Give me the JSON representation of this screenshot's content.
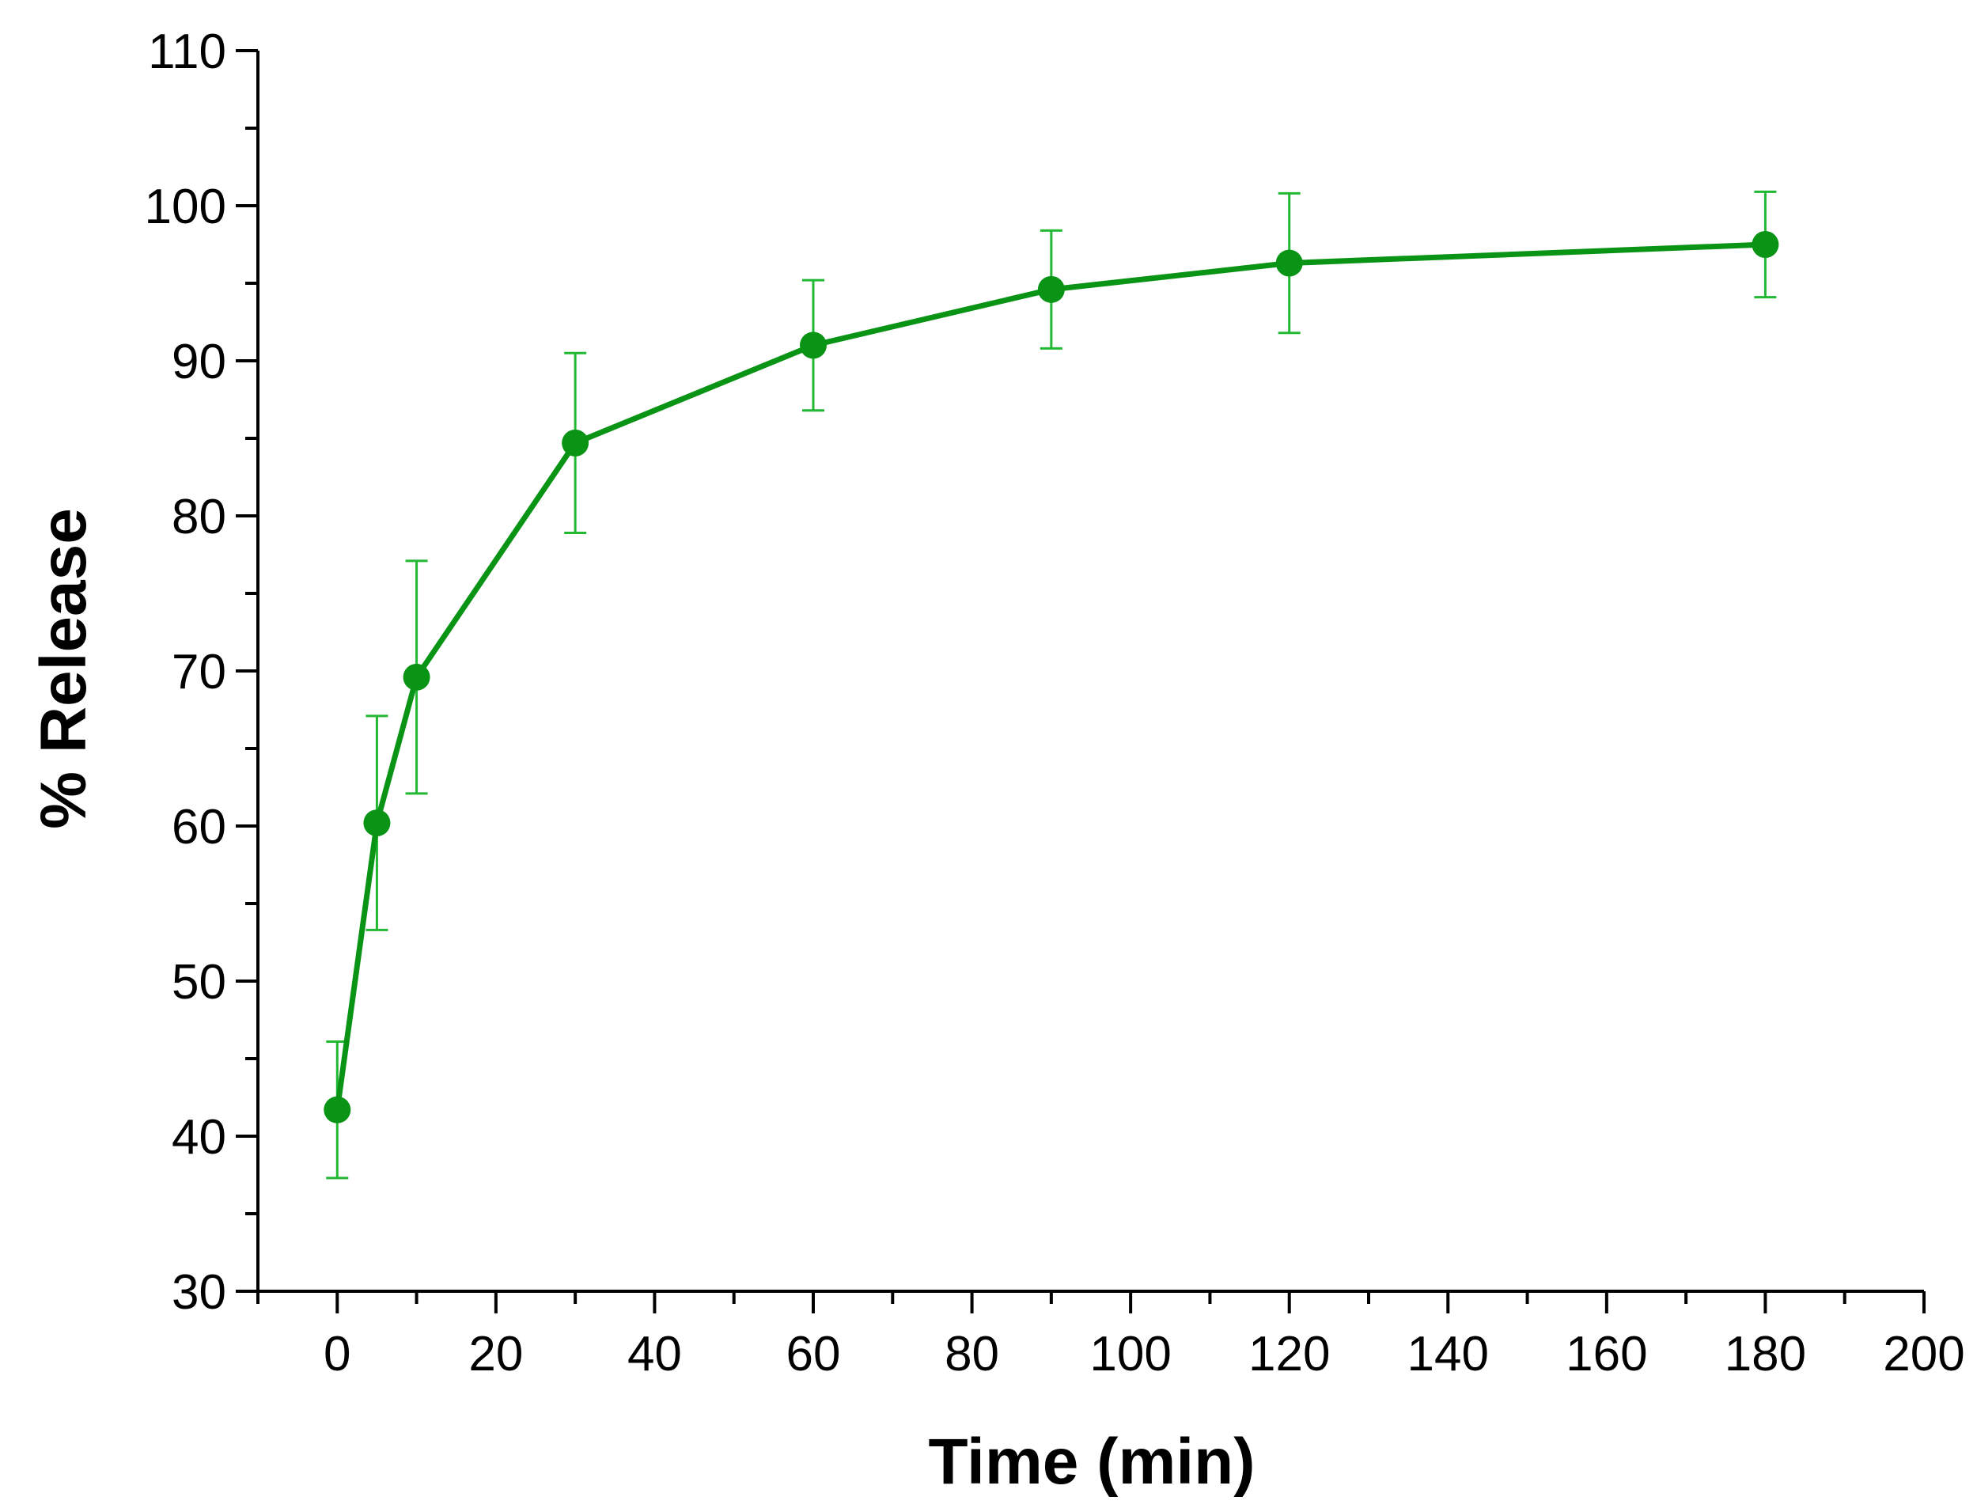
{
  "chart_data": {
    "type": "line",
    "title": "",
    "xlabel": "Time (min)",
    "ylabel": "% Release",
    "xlim": [
      -10,
      200
    ],
    "ylim": [
      30,
      110
    ],
    "x_ticks": [
      0,
      20,
      40,
      60,
      80,
      100,
      120,
      140,
      160,
      180,
      200
    ],
    "y_ticks": [
      30,
      40,
      50,
      60,
      70,
      80,
      90,
      100,
      110
    ],
    "x_minor_step": 10,
    "y_minor_step": 5,
    "grid": false,
    "legend": "none",
    "series": [
      {
        "name": "% Release",
        "color": "#0a9416",
        "error_bar_color": "#22b833",
        "marker": "circle",
        "x": [
          0,
          5,
          10,
          30,
          60,
          90,
          120,
          180
        ],
        "y": [
          41.7,
          60.2,
          69.6,
          84.7,
          91.0,
          94.6,
          96.3,
          97.5
        ],
        "error": [
          4.4,
          6.9,
          7.5,
          5.8,
          4.2,
          3.8,
          4.5,
          3.4
        ]
      }
    ]
  }
}
